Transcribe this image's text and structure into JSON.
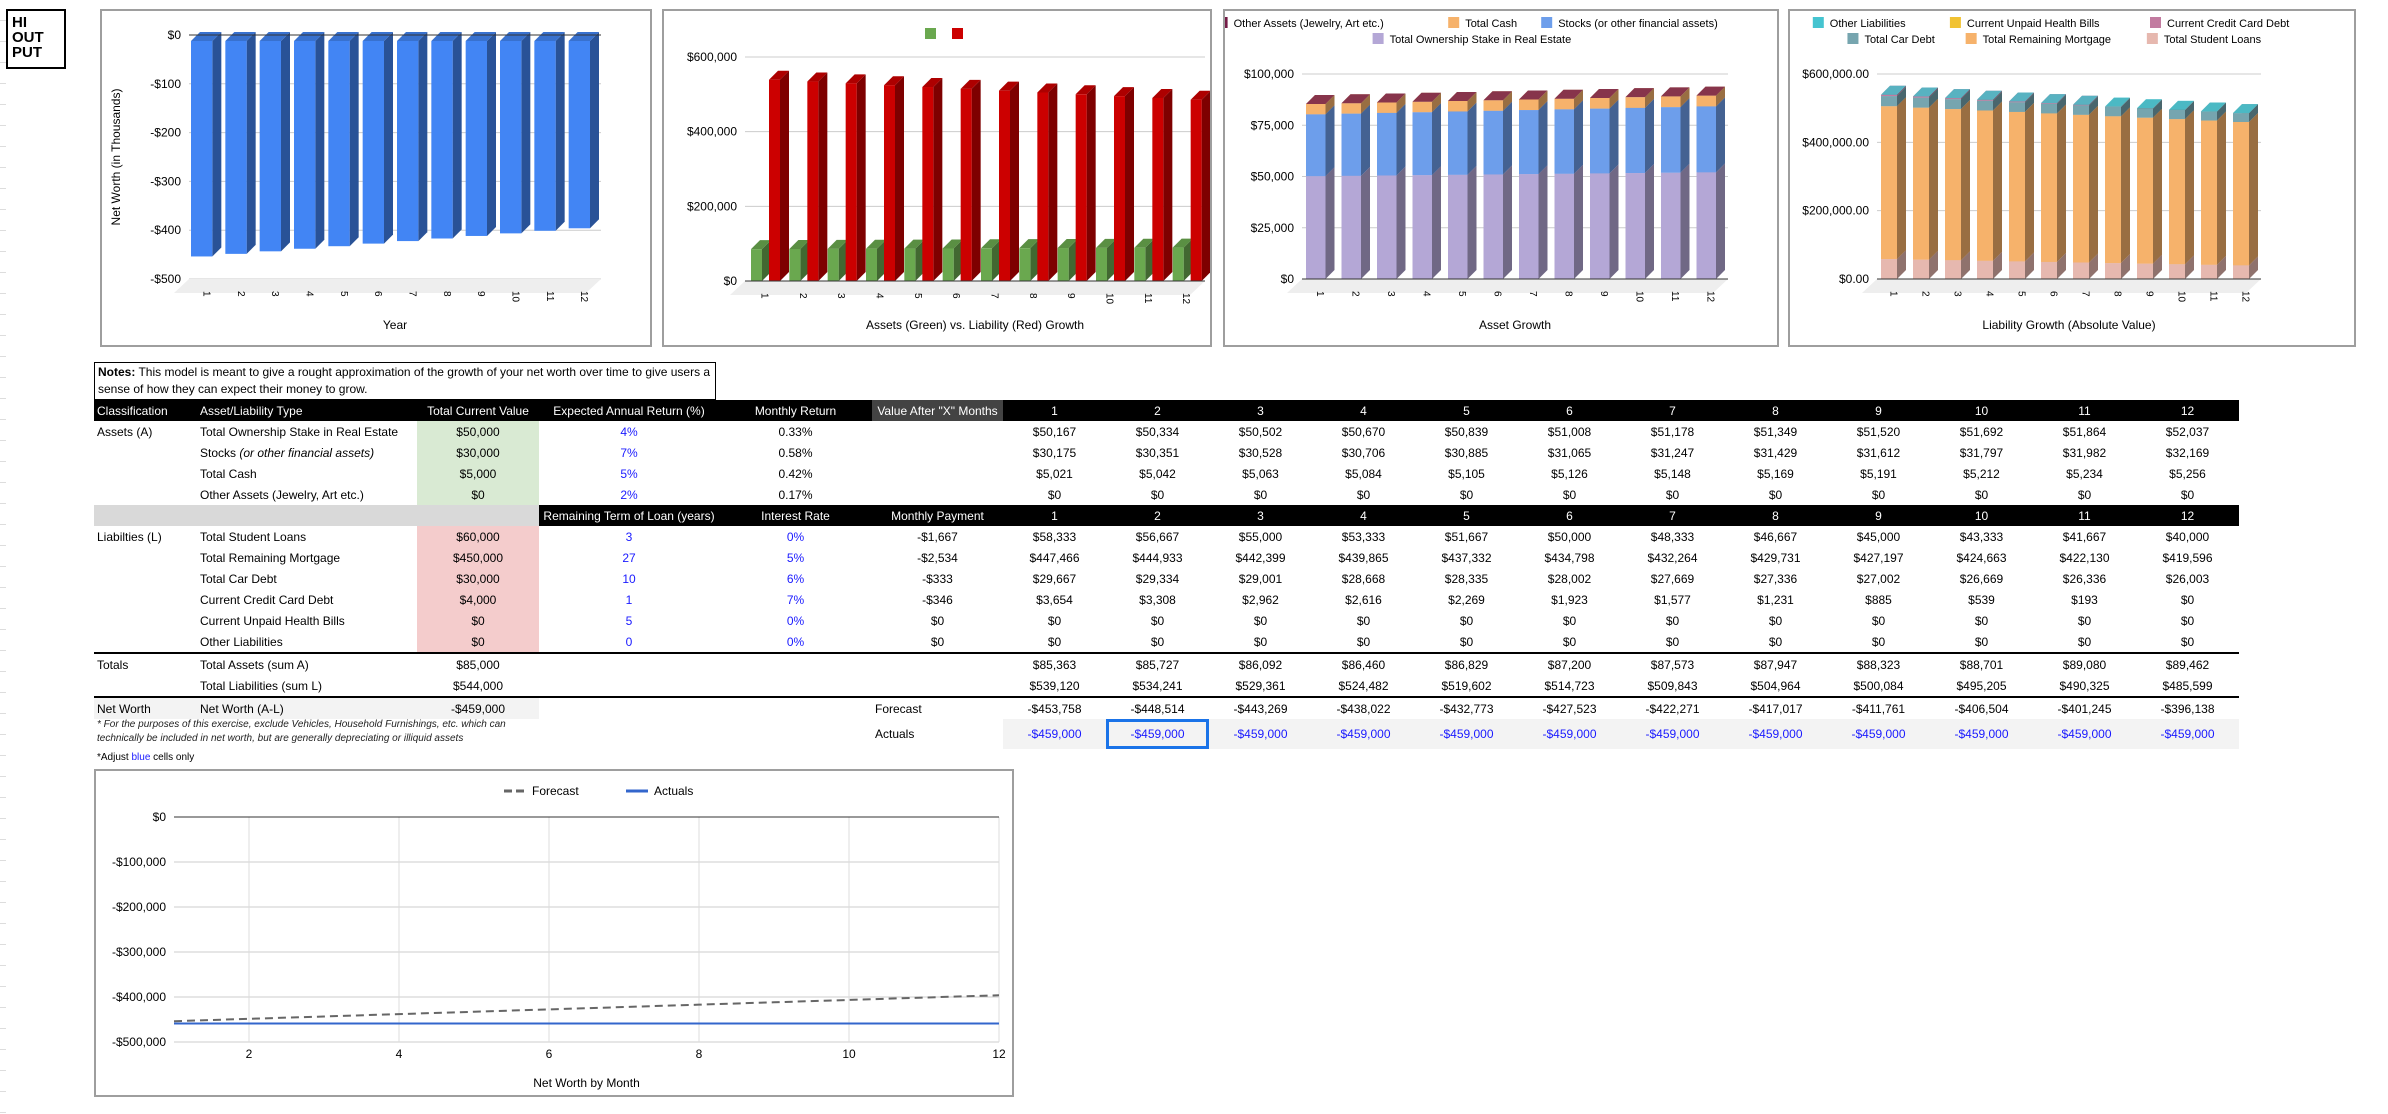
{
  "logo": "HI OUT PUT",
  "notes": {
    "label": "Notes:",
    "text": " This model is meant to give a rought approximation of the growth of your net worth over time to give users a sense of how they can expect their money to grow."
  },
  "table": {
    "headers1": [
      "Classification",
      "Asset/Liability Type",
      "Total Current Value",
      "Expected Annual Return (%)",
      "Monthly Return",
      "Value After \"X\" Months"
    ],
    "headers2": [
      "Remaining Term of Loan (years)",
      "Interest Rate",
      "Monthly Payment"
    ],
    "months": [
      "1",
      "2",
      "3",
      "4",
      "5",
      "6",
      "7",
      "8",
      "9",
      "10",
      "11",
      "12"
    ],
    "assets": [
      {
        "cls": "Assets (A)",
        "type": "Total Ownership Stake in Real Estate",
        "type_italic": "",
        "value": "$50,000",
        "rate": "4%",
        "monthly": "0.33%",
        "vals": [
          "$50,167",
          "$50,334",
          "$50,502",
          "$50,670",
          "$50,839",
          "$51,008",
          "$51,178",
          "$51,349",
          "$51,520",
          "$51,692",
          "$51,864",
          "$52,037"
        ]
      },
      {
        "cls": "",
        "type": "Stocks ",
        "type_italic": "(or other financial assets)",
        "value": "$30,000",
        "rate": "7%",
        "monthly": "0.58%",
        "vals": [
          "$30,175",
          "$30,351",
          "$30,528",
          "$30,706",
          "$30,885",
          "$31,065",
          "$31,247",
          "$31,429",
          "$31,612",
          "$31,797",
          "$31,982",
          "$32,169"
        ]
      },
      {
        "cls": "",
        "type": "Total Cash",
        "type_italic": "",
        "value": "$5,000",
        "rate": "5%",
        "monthly": "0.42%",
        "vals": [
          "$5,021",
          "$5,042",
          "$5,063",
          "$5,084",
          "$5,105",
          "$5,126",
          "$5,148",
          "$5,169",
          "$5,191",
          "$5,212",
          "$5,234",
          "$5,256"
        ]
      },
      {
        "cls": "",
        "type": "Other Assets (Jewelry, Art etc.)",
        "type_italic": "",
        "value": "$0",
        "rate": "2%",
        "monthly": "0.17%",
        "vals": [
          "$0",
          "$0",
          "$0",
          "$0",
          "$0",
          "$0",
          "$0",
          "$0",
          "$0",
          "$0",
          "$0",
          "$0"
        ]
      }
    ],
    "liabilities": [
      {
        "cls": "Liabilties (L)",
        "type": "Total Student Loans",
        "value": "$60,000",
        "term": "3",
        "rate": "0%",
        "payment": "-$1,667",
        "vals": [
          "$58,333",
          "$56,667",
          "$55,000",
          "$53,333",
          "$51,667",
          "$50,000",
          "$48,333",
          "$46,667",
          "$45,000",
          "$43,333",
          "$41,667",
          "$40,000"
        ]
      },
      {
        "cls": "",
        "type": "Total Remaining Mortgage",
        "value": "$450,000",
        "term": "27",
        "rate": "5%",
        "payment": "-$2,534",
        "vals": [
          "$447,466",
          "$444,933",
          "$442,399",
          "$439,865",
          "$437,332",
          "$434,798",
          "$432,264",
          "$429,731",
          "$427,197",
          "$424,663",
          "$422,130",
          "$419,596"
        ]
      },
      {
        "cls": "",
        "type": "Total Car Debt",
        "value": "$30,000",
        "term": "10",
        "rate": "6%",
        "payment": "-$333",
        "vals": [
          "$29,667",
          "$29,334",
          "$29,001",
          "$28,668",
          "$28,335",
          "$28,002",
          "$27,669",
          "$27,336",
          "$27,002",
          "$26,669",
          "$26,336",
          "$26,003"
        ]
      },
      {
        "cls": "",
        "type": "Current Credit Card Debt",
        "value": "$4,000",
        "term": "1",
        "rate": "7%",
        "payment": "-$346",
        "vals": [
          "$3,654",
          "$3,308",
          "$2,962",
          "$2,616",
          "$2,269",
          "$1,923",
          "$1,577",
          "$1,231",
          "$885",
          "$539",
          "$193",
          "$0"
        ]
      },
      {
        "cls": "",
        "type": "Current Unpaid Health Bills",
        "value": "$0",
        "term": "5",
        "rate": "0%",
        "payment": "$0",
        "vals": [
          "$0",
          "$0",
          "$0",
          "$0",
          "$0",
          "$0",
          "$0",
          "$0",
          "$0",
          "$0",
          "$0",
          "$0"
        ]
      },
      {
        "cls": "",
        "type": "Other Liabilities",
        "value": "$0",
        "term": "0",
        "rate": "0%",
        "payment": "$0",
        "vals": [
          "$0",
          "$0",
          "$0",
          "$0",
          "$0",
          "$0",
          "$0",
          "$0",
          "$0",
          "$0",
          "$0",
          "$0"
        ]
      }
    ],
    "totals": [
      {
        "cls": "Totals",
        "type": "Total Assets (sum A)",
        "value": "$85,000",
        "vals": [
          "$85,363",
          "$85,727",
          "$86,092",
          "$86,460",
          "$86,829",
          "$87,200",
          "$87,573",
          "$87,947",
          "$88,323",
          "$88,701",
          "$89,080",
          "$89,462"
        ]
      },
      {
        "cls": "",
        "type": "Total Liabilities (sum L)",
        "value": "$544,000",
        "vals": [
          "$539,120",
          "$534,241",
          "$529,361",
          "$524,482",
          "$519,602",
          "$514,723",
          "$509,843",
          "$504,964",
          "$500,084",
          "$495,205",
          "$490,325",
          "$485,599"
        ]
      }
    ],
    "net_worth": {
      "cls": "Net Worth",
      "type": "Net Worth (A-L)",
      "value": "-$459,000",
      "label": "Forecast",
      "vals": [
        "-$453,758",
        "-$448,514",
        "-$443,269",
        "-$438,022",
        "-$432,773",
        "-$427,523",
        "-$422,271",
        "-$417,017",
        "-$411,761",
        "-$406,504",
        "-$401,245",
        "-$396,138"
      ]
    },
    "actuals": {
      "label": "Actuals",
      "vals": [
        "-$459,000",
        "-$459,000",
        "-$459,000",
        "-$459,000",
        "-$459,000",
        "-$459,000",
        "-$459,000",
        "-$459,000",
        "-$459,000",
        "-$459,000",
        "-$459,000",
        "-$459,000"
      ]
    }
  },
  "footnote": "* For the purposes of this exercise, exclude Vehicles, Household Furnishings, etc. which can technically be included in net worth, but are generally depreciating or illiquid assets",
  "adjust": {
    "pre": "*Adjust ",
    "blue": "blue",
    "post": " cells only"
  },
  "chart_data": [
    {
      "type": "bar",
      "title": "",
      "xlabel": "Year",
      "ylabel": "Net Worth (in Thousands)",
      "categories": [
        "1",
        "2",
        "3",
        "4",
        "5",
        "6",
        "7",
        "8",
        "9",
        "10",
        "11",
        "12"
      ],
      "ylim": [
        -500,
        0
      ],
      "yticks": [
        "$0",
        "-$100",
        "-$200",
        "-$300",
        "-$400",
        "-$500"
      ],
      "values": [
        -453.8,
        -448.5,
        -443.3,
        -438.0,
        -432.8,
        -427.5,
        -422.3,
        -417.0,
        -411.8,
        -406.5,
        -401.2,
        -396.1
      ],
      "color": "#4285f4"
    },
    {
      "type": "bar",
      "xlabel": "Assets (Green) vs. Liability (Red) Growth",
      "categories": [
        "1",
        "2",
        "3",
        "4",
        "5",
        "6",
        "7",
        "8",
        "9",
        "10",
        "11",
        "12"
      ],
      "ylim": [
        0,
        600000
      ],
      "yticks": [
        "$0",
        "$200,000",
        "$400,000",
        "$600,000"
      ],
      "series": [
        {
          "name": "",
          "color": "#6aa84f",
          "values": [
            85363,
            85727,
            86092,
            86460,
            86829,
            87200,
            87573,
            87947,
            88323,
            88701,
            89080,
            89462
          ]
        },
        {
          "name": "",
          "color": "#cc0000",
          "values": [
            539120,
            534241,
            529361,
            524482,
            519602,
            514723,
            509843,
            504964,
            500084,
            495205,
            490325,
            485599
          ]
        }
      ]
    },
    {
      "type": "bar",
      "stacked": true,
      "xlabel": "Asset Growth",
      "categories": [
        "1",
        "2",
        "3",
        "4",
        "5",
        "6",
        "7",
        "8",
        "9",
        "10",
        "11",
        "12"
      ],
      "ylim": [
        0,
        100000
      ],
      "yticks": [
        "$0",
        "$25,000",
        "$50,000",
        "$75,000",
        "$100,000"
      ],
      "legend": [
        "Other Assets (Jewelry, Art etc.)",
        "Total Cash",
        "Stocks (or other financial assets)",
        "Total Ownership Stake in Real Estate"
      ],
      "series": [
        {
          "name": "Total Ownership Stake in Real Estate",
          "color": "#b4a7d6",
          "values": [
            50167,
            50334,
            50502,
            50670,
            50839,
            51008,
            51178,
            51349,
            51520,
            51692,
            51864,
            52037
          ]
        },
        {
          "name": "Stocks (or other financial assets)",
          "color": "#6d9eeb",
          "values": [
            30175,
            30351,
            30528,
            30706,
            30885,
            31065,
            31247,
            31429,
            31612,
            31797,
            31982,
            32169
          ]
        },
        {
          "name": "Total Cash",
          "color": "#f6b26b",
          "values": [
            5021,
            5042,
            5063,
            5084,
            5105,
            5126,
            5148,
            5169,
            5191,
            5212,
            5234,
            5256
          ]
        },
        {
          "name": "Other Assets (Jewelry, Art etc.)",
          "color": "#741b47",
          "values": [
            0,
            0,
            0,
            0,
            0,
            0,
            0,
            0,
            0,
            0,
            0,
            0
          ]
        }
      ]
    },
    {
      "type": "bar",
      "stacked": true,
      "xlabel": "Liability Growth (Absolute Value)",
      "categories": [
        "1",
        "2",
        "3",
        "4",
        "5",
        "6",
        "7",
        "8",
        "9",
        "10",
        "11",
        "12"
      ],
      "ylim": [
        0,
        600000
      ],
      "yticks": [
        "$0.00",
        "$200,000.00",
        "$400,000.00",
        "$600,000.00"
      ],
      "legend": [
        "Other Liabilities",
        "Current Unpaid Health Bills",
        "Current Credit Card Debt",
        "Total Car Debt",
        "Total Remaining Mortgage",
        "Total Student Loans"
      ],
      "series": [
        {
          "name": "Total Student Loans",
          "color": "#e6b8af",
          "values": [
            58333,
            56667,
            55000,
            53333,
            51667,
            50000,
            48333,
            46667,
            45000,
            43333,
            41667,
            40000
          ]
        },
        {
          "name": "Total Remaining Mortgage",
          "color": "#f6b26b",
          "values": [
            447466,
            444933,
            442399,
            439865,
            437332,
            434798,
            432264,
            429731,
            427197,
            424663,
            422130,
            419596
          ]
        },
        {
          "name": "Total Car Debt",
          "color": "#76a5af",
          "values": [
            29667,
            29334,
            29001,
            28668,
            28335,
            28002,
            27669,
            27336,
            27002,
            26669,
            26336,
            26003
          ]
        },
        {
          "name": "Current Credit Card Debt",
          "color": "#c27ba0",
          "values": [
            3654,
            3308,
            2962,
            2616,
            2269,
            1923,
            1577,
            1231,
            885,
            539,
            193,
            0
          ]
        },
        {
          "name": "Current Unpaid Health Bills",
          "color": "#f1c232",
          "values": [
            0,
            0,
            0,
            0,
            0,
            0,
            0,
            0,
            0,
            0,
            0,
            0
          ]
        },
        {
          "name": "Other Liabilities",
          "color": "#45c4d0",
          "values": [
            0,
            0,
            0,
            0,
            0,
            0,
            0,
            0,
            0,
            0,
            0,
            0
          ]
        }
      ]
    },
    {
      "type": "line",
      "xlabel": "Net Worth by Month",
      "x": [
        1,
        2,
        3,
        4,
        5,
        6,
        7,
        8,
        9,
        10,
        11,
        12
      ],
      "xticks": [
        "2",
        "4",
        "6",
        "8",
        "10",
        "12"
      ],
      "ylim": [
        -500000,
        0
      ],
      "yticks": [
        "$0",
        "-$100,000",
        "-$200,000",
        "-$300,000",
        "-$400,000",
        "-$500,000"
      ],
      "series": [
        {
          "name": "Forecast",
          "color": "#666666",
          "dashed": true,
          "values": [
            -453758,
            -448514,
            -443269,
            -438022,
            -432773,
            -427523,
            -422271,
            -417017,
            -411761,
            -406504,
            -401245,
            -396138
          ]
        },
        {
          "name": "Actuals",
          "color": "#3366cc",
          "values": [
            -459000,
            -459000,
            -459000,
            -459000,
            -459000,
            -459000,
            -459000,
            -459000,
            -459000,
            -459000,
            -459000,
            -459000
          ]
        }
      ]
    }
  ]
}
